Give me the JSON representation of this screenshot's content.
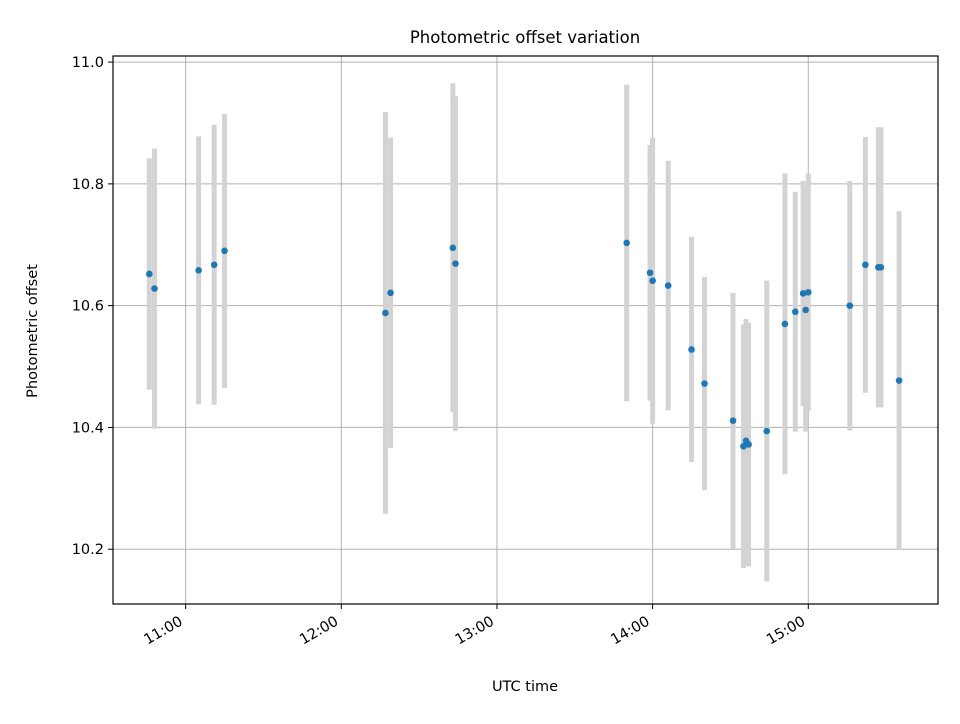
{
  "chart_data": {
    "type": "scatter",
    "title": "Photometric offset variation",
    "xlabel": "UTC time",
    "ylabel": "Photometric offset",
    "x_tick_labels": [
      "11:00",
      "12:00",
      "13:00",
      "14:00",
      "15:00"
    ],
    "x_ticks": [
      "11:00",
      "12:00",
      "13:00",
      "14:00",
      "15:00"
    ],
    "y_ticks": [
      10.2,
      10.4,
      10.6,
      10.8,
      11.0
    ],
    "y_tick_labels": [
      "10.2",
      "10.4",
      "10.6",
      "10.8",
      "11.0"
    ],
    "xlim": [
      "10:32",
      "15:50"
    ],
    "ylim": [
      10.11,
      11.01
    ],
    "grid": true,
    "marker_color": "#1f77b4",
    "errorbar_color": "#d3d3d3",
    "points": [
      {
        "time": "10:46",
        "y": 10.652,
        "err": 0.19
      },
      {
        "time": "10:48",
        "y": 10.628,
        "err": 0.23
      },
      {
        "time": "11:05",
        "y": 10.658,
        "err": 0.22
      },
      {
        "time": "11:11",
        "y": 10.667,
        "err": 0.23
      },
      {
        "time": "11:15",
        "y": 10.69,
        "err": 0.225
      },
      {
        "time": "12:17",
        "y": 10.588,
        "err": 0.33
      },
      {
        "time": "12:19",
        "y": 10.621,
        "err": 0.255
      },
      {
        "time": "12:43",
        "y": 10.695,
        "err": 0.27
      },
      {
        "time": "12:44",
        "y": 10.669,
        "err": 0.275
      },
      {
        "time": "13:50",
        "y": 10.703,
        "err": 0.26
      },
      {
        "time": "13:59",
        "y": 10.654,
        "err": 0.21
      },
      {
        "time": "14:00",
        "y": 10.641,
        "err": 0.235
      },
      {
        "time": "14:06",
        "y": 10.633,
        "err": 0.205
      },
      {
        "time": "14:15",
        "y": 10.528,
        "err": 0.185
      },
      {
        "time": "14:20",
        "y": 10.472,
        "err": 0.175
      },
      {
        "time": "14:31",
        "y": 10.411,
        "err": 0.21
      },
      {
        "time": "14:35",
        "y": 10.369,
        "err": 0.2
      },
      {
        "time": "14:36",
        "y": 10.378,
        "err": 0.2
      },
      {
        "time": "14:37",
        "y": 10.372,
        "err": 0.2
      },
      {
        "time": "14:44",
        "y": 10.394,
        "err": 0.247
      },
      {
        "time": "14:51",
        "y": 10.57,
        "err": 0.247
      },
      {
        "time": "14:55",
        "y": 10.59,
        "err": 0.197
      },
      {
        "time": "14:58",
        "y": 10.62,
        "err": 0.185
      },
      {
        "time": "14:59",
        "y": 10.593,
        "err": 0.2
      },
      {
        "time": "15:00",
        "y": 10.622,
        "err": 0.195
      },
      {
        "time": "15:16",
        "y": 10.6,
        "err": 0.205
      },
      {
        "time": "15:22",
        "y": 10.667,
        "err": 0.21
      },
      {
        "time": "15:27",
        "y": 10.663,
        "err": 0.23
      },
      {
        "time": "15:28",
        "y": 10.663,
        "err": 0.23
      },
      {
        "time": "15:35",
        "y": 10.477,
        "err": 0.278
      }
    ]
  }
}
